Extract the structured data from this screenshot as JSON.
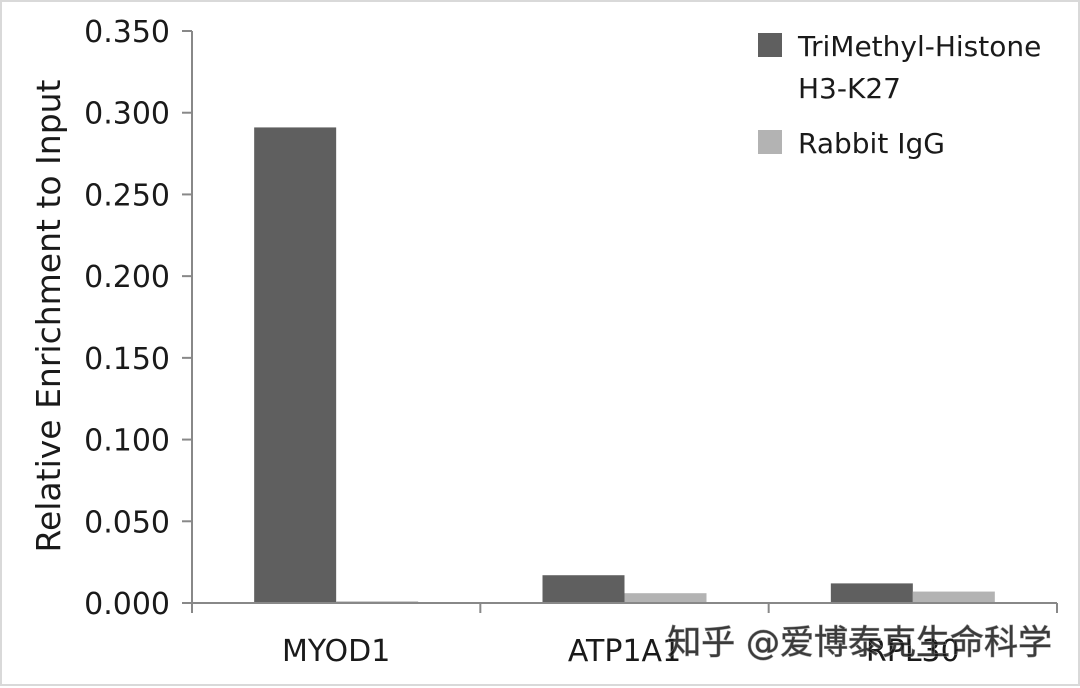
{
  "chart_data": {
    "type": "bar",
    "categories": [
      "MYOD1",
      "ATP1A1",
      "RPL30"
    ],
    "series": [
      {
        "name": "TriMethyl-Histone H3-K27",
        "values": [
          0.291,
          0.017,
          0.012
        ],
        "color": "#5f5f5f"
      },
      {
        "name": "Rabbit IgG",
        "values": [
          0.001,
          0.006,
          0.007
        ],
        "color": "#b3b3b3"
      }
    ],
    "title": "",
    "xlabel": "",
    "ylabel": "Relative Enrichment to Input",
    "ylim": [
      0,
      0.35
    ],
    "yticks": [
      "0.000",
      "0.050",
      "0.100",
      "0.150",
      "0.200",
      "0.250",
      "0.300",
      "0.350"
    ],
    "grid": false,
    "legend_position": "top-right",
    "legend_lines": [
      [
        "TriMethyl-Histone",
        "H3-K27"
      ],
      [
        "Rabbit IgG"
      ]
    ]
  },
  "watermark": "知乎 @爱博泰克生命科学"
}
